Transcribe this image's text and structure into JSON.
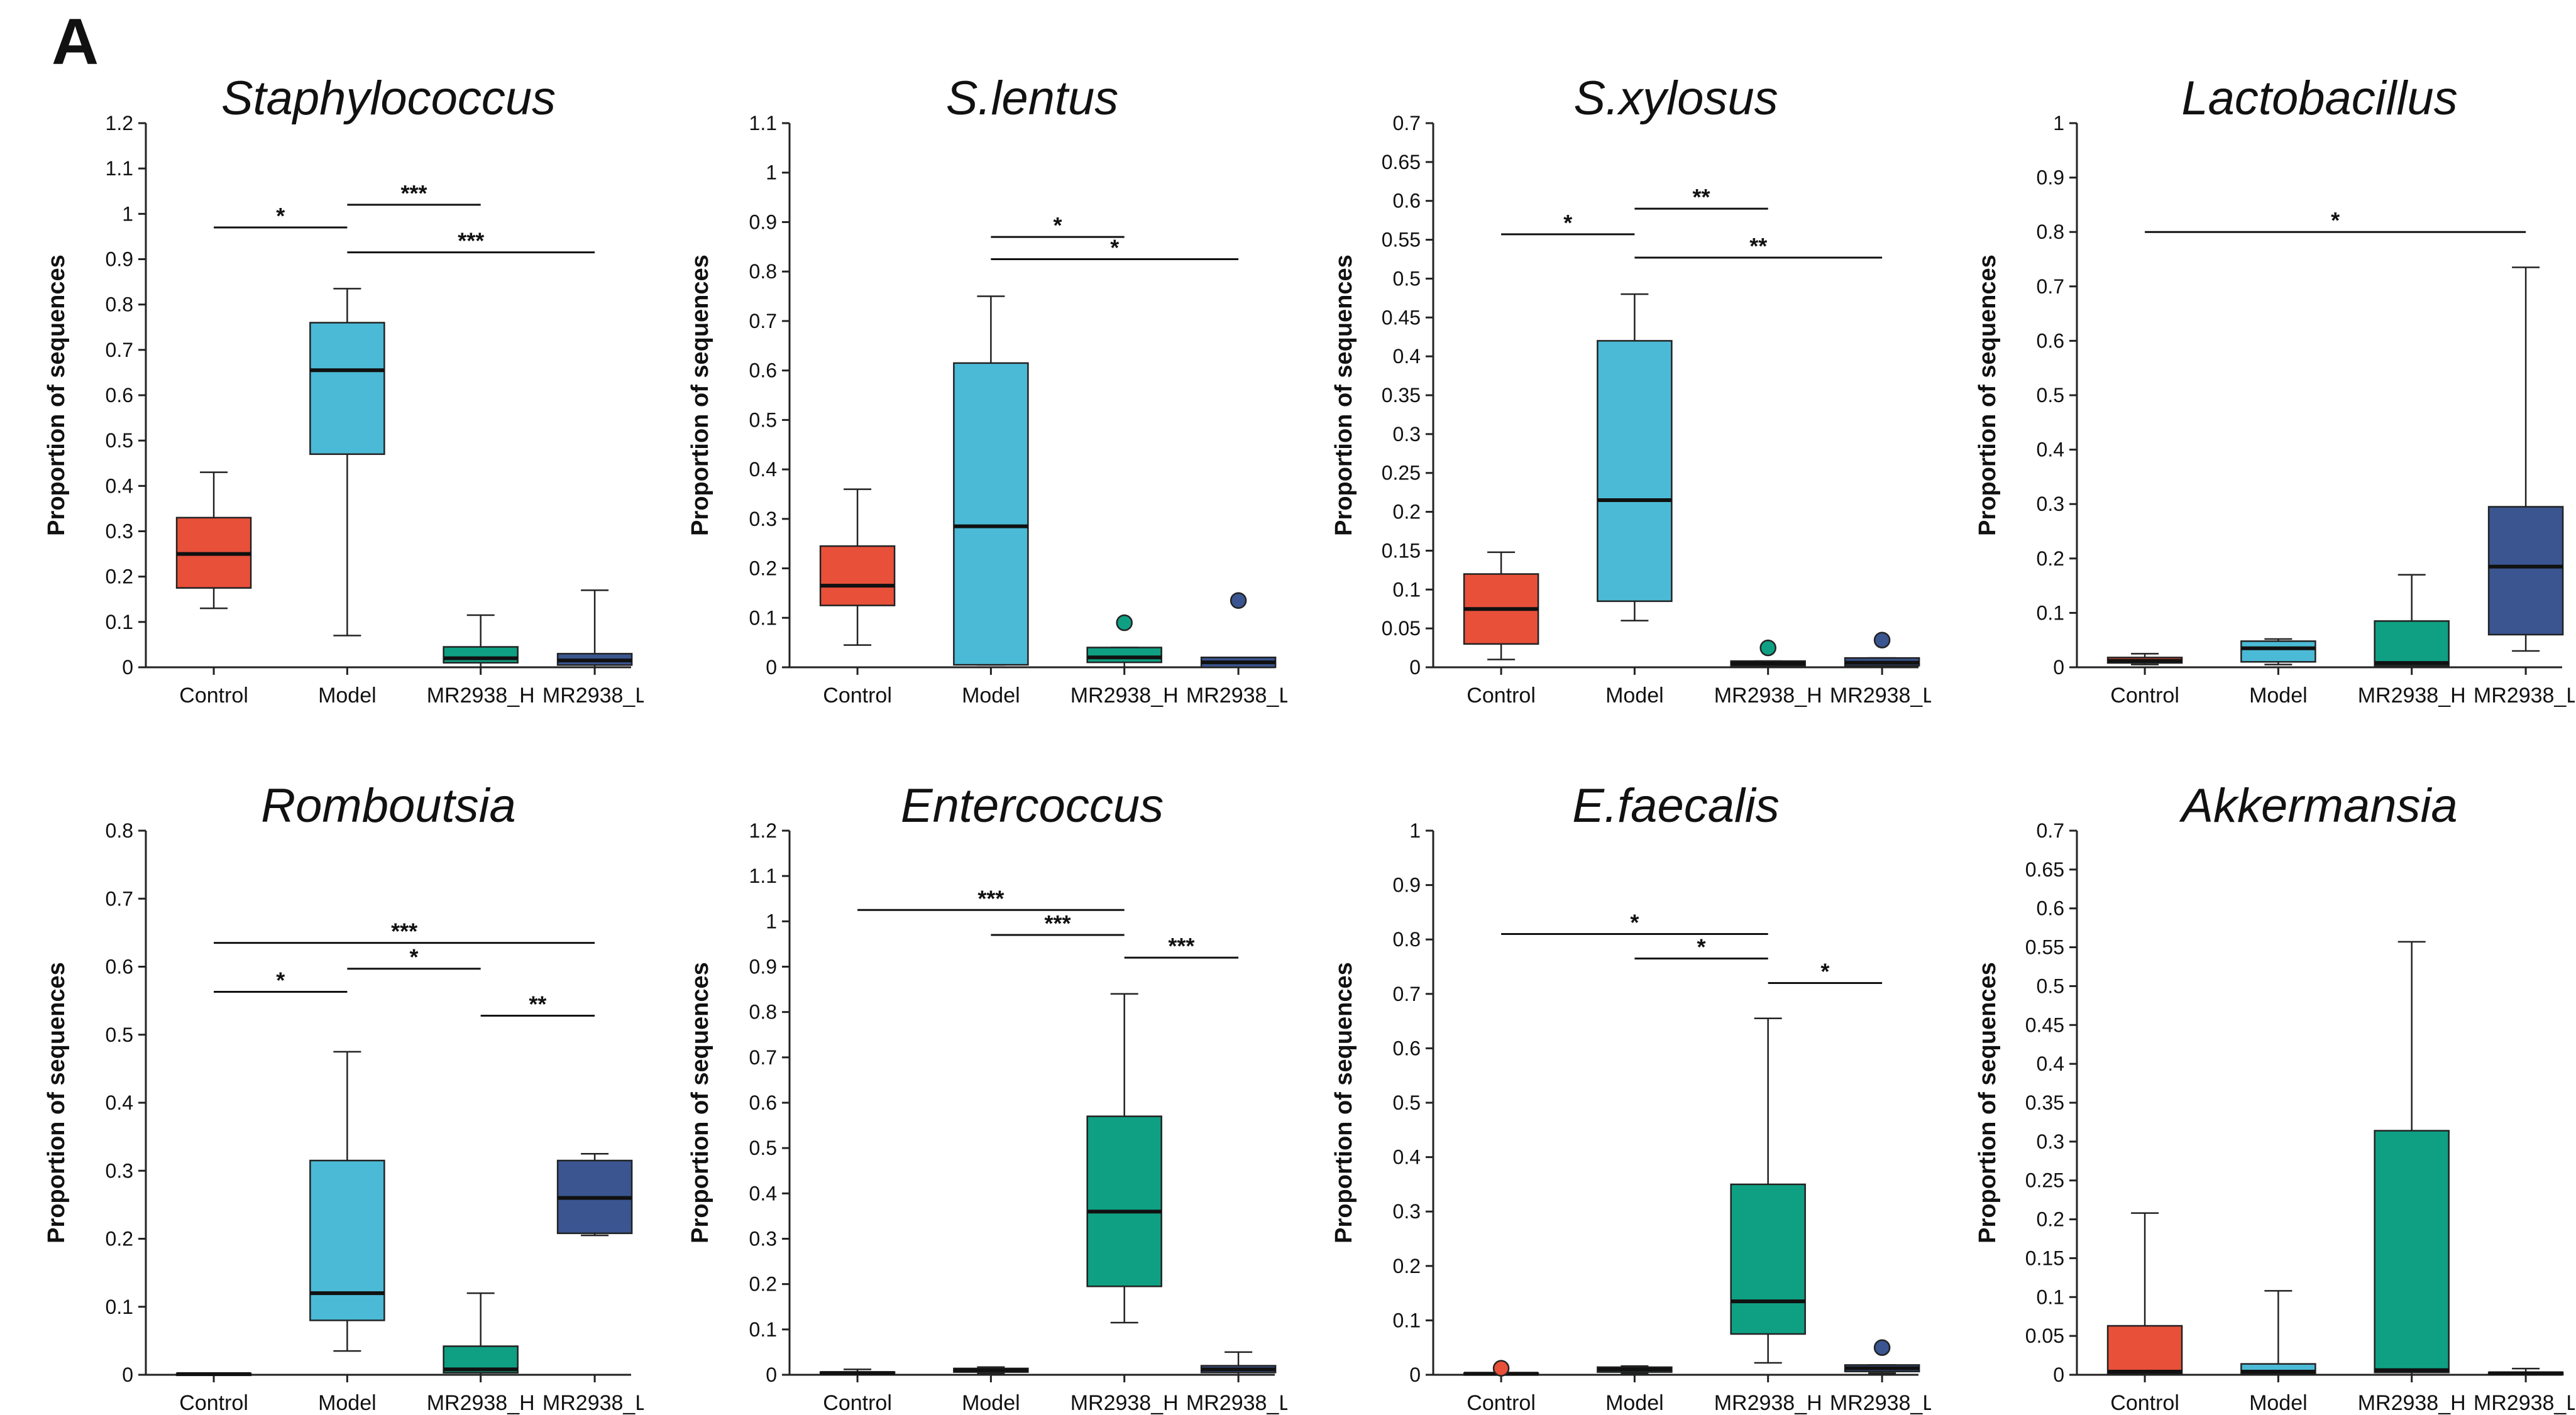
{
  "figure": {
    "panel_label": "A",
    "colors": {
      "Control": "#E8503A",
      "Model": "#4BBAD6",
      "MR2938_H": "#0FA083",
      "MR2938_L": "#3A5590"
    }
  },
  "chart_data": [
    {
      "type": "box",
      "title": "Staphylococcus",
      "ylabel": "Proportion of sequences",
      "ylim": [
        0,
        1.2
      ],
      "yticks": [
        "0",
        "0.1",
        "0.2",
        "0.3",
        "0.4",
        "0.5",
        "0.6",
        "0.7",
        "0.8",
        "0.9",
        "1",
        "1.1",
        "1.2"
      ],
      "categories": [
        "Control",
        "Model",
        "MR2938_H",
        "MR2938_L"
      ],
      "boxes": [
        {
          "min": 0.13,
          "q1": 0.175,
          "median": 0.25,
          "q3": 0.33,
          "max": 0.43,
          "outliers": []
        },
        {
          "min": 0.07,
          "q1": 0.47,
          "median": 0.655,
          "q3": 0.76,
          "max": 0.835,
          "outliers": []
        },
        {
          "min": 0.0,
          "q1": 0.01,
          "median": 0.02,
          "q3": 0.045,
          "max": 0.115,
          "outliers": []
        },
        {
          "min": 0.0,
          "q1": 0.005,
          "median": 0.015,
          "q3": 0.03,
          "max": 0.17,
          "outliers": []
        }
      ],
      "significance": [
        {
          "from": 0,
          "to": 1,
          "y": 0.97,
          "label": "*"
        },
        {
          "from": 1,
          "to": 2,
          "y": 1.02,
          "label": "***"
        },
        {
          "from": 1,
          "to": 3,
          "y": 0.915,
          "label": "***"
        }
      ]
    },
    {
      "type": "box",
      "title": "S.lentus",
      "ylabel": "Proportion of sequences",
      "ylim": [
        0,
        1.1
      ],
      "yticks": [
        "0",
        "0.1",
        "0.2",
        "0.3",
        "0.4",
        "0.5",
        "0.6",
        "0.7",
        "0.8",
        "0.9",
        "1",
        "1.1"
      ],
      "categories": [
        "Control",
        "Model",
        "MR2938_H",
        "MR2938_L"
      ],
      "boxes": [
        {
          "min": 0.045,
          "q1": 0.125,
          "median": 0.165,
          "q3": 0.245,
          "max": 0.36,
          "outliers": []
        },
        {
          "min": 0.005,
          "q1": 0.005,
          "median": 0.285,
          "q3": 0.615,
          "max": 0.75,
          "outliers": []
        },
        {
          "min": 0.0,
          "q1": 0.01,
          "median": 0.02,
          "q3": 0.04,
          "max": 0.04,
          "outliers": [
            0.09
          ]
        },
        {
          "min": 0.0,
          "q1": 0.0,
          "median": 0.01,
          "q3": 0.02,
          "max": 0.02,
          "outliers": [
            0.135
          ]
        }
      ],
      "significance": [
        {
          "from": 1,
          "to": 2,
          "y": 0.87,
          "label": "*"
        },
        {
          "from": 1,
          "to": 3,
          "y": 0.825,
          "label": "*"
        }
      ]
    },
    {
      "type": "box",
      "title": "S.xylosus",
      "ylabel": "Proportion of sequences",
      "ylim": [
        0,
        0.7
      ],
      "yticks": [
        "0",
        "0.05",
        "0.1",
        "0.15",
        "0.2",
        "0.25",
        "0.3",
        "0.35",
        "0.4",
        "0.45",
        "0.5",
        "0.55",
        "0.6",
        "0.65",
        "0.7"
      ],
      "categories": [
        "Control",
        "Model",
        "MR2938_H",
        "MR2938_L"
      ],
      "boxes": [
        {
          "min": 0.01,
          "q1": 0.03,
          "median": 0.075,
          "q3": 0.12,
          "max": 0.148,
          "outliers": []
        },
        {
          "min": 0.06,
          "q1": 0.085,
          "median": 0.215,
          "q3": 0.42,
          "max": 0.48,
          "outliers": []
        },
        {
          "min": 0.0,
          "q1": 0.002,
          "median": 0.005,
          "q3": 0.008,
          "max": 0.008,
          "outliers": [
            0.025
          ]
        },
        {
          "min": 0.0,
          "q1": 0.002,
          "median": 0.006,
          "q3": 0.012,
          "max": 0.012,
          "outliers": [
            0.035
          ]
        }
      ],
      "significance": [
        {
          "from": 0,
          "to": 1,
          "y": 0.557,
          "label": "*"
        },
        {
          "from": 1,
          "to": 2,
          "y": 0.59,
          "label": "**"
        },
        {
          "from": 1,
          "to": 3,
          "y": 0.527,
          "label": "**"
        }
      ]
    },
    {
      "type": "box",
      "title": "Lactobacillus",
      "ylabel": "Proportion of sequences",
      "ylim": [
        0,
        1
      ],
      "yticks": [
        "0",
        "0.1",
        "0.2",
        "0.3",
        "0.4",
        "0.5",
        "0.6",
        "0.7",
        "0.8",
        "0.9",
        "1"
      ],
      "categories": [
        "Control",
        "Model",
        "MR2938_H",
        "MR2938_L"
      ],
      "boxes": [
        {
          "min": 0.005,
          "q1": 0.008,
          "median": 0.012,
          "q3": 0.018,
          "max": 0.025,
          "outliers": []
        },
        {
          "min": 0.005,
          "q1": 0.01,
          "median": 0.035,
          "q3": 0.048,
          "max": 0.052,
          "outliers": []
        },
        {
          "min": 0.0,
          "q1": 0.003,
          "median": 0.008,
          "q3": 0.085,
          "max": 0.17,
          "outliers": []
        },
        {
          "min": 0.03,
          "q1": 0.06,
          "median": 0.185,
          "q3": 0.295,
          "max": 0.735,
          "outliers": []
        }
      ],
      "significance": [
        {
          "from": 0,
          "to": 3,
          "y": 0.8,
          "label": "*"
        }
      ]
    },
    {
      "type": "box",
      "title": "Romboutsia",
      "ylabel": "Proportion of sequences",
      "ylim": [
        0,
        0.8
      ],
      "yticks": [
        "0",
        "0.1",
        "0.2",
        "0.3",
        "0.4",
        "0.5",
        "0.6",
        "0.7",
        "0.8"
      ],
      "categories": [
        "Control",
        "Model",
        "MR2938_H",
        "MR2938_L"
      ],
      "boxes": [
        {
          "min": 0.0,
          "q1": 0.0,
          "median": 0.001,
          "q3": 0.002,
          "max": 0.002,
          "outliers": []
        },
        {
          "min": 0.035,
          "q1": 0.08,
          "median": 0.12,
          "q3": 0.315,
          "max": 0.475,
          "outliers": []
        },
        {
          "min": 0.0,
          "q1": 0.003,
          "median": 0.008,
          "q3": 0.042,
          "max": 0.12,
          "outliers": []
        },
        {
          "min": 0.205,
          "q1": 0.208,
          "median": 0.26,
          "q3": 0.315,
          "max": 0.325,
          "outliers": []
        }
      ],
      "significance": [
        {
          "from": 0,
          "to": 3,
          "y": 0.635,
          "label": "***"
        },
        {
          "from": 0,
          "to": 1,
          "y": 0.563,
          "label": "*"
        },
        {
          "from": 1,
          "to": 2,
          "y": 0.597,
          "label": "*"
        },
        {
          "from": 2,
          "to": 3,
          "y": 0.528,
          "label": "**"
        }
      ]
    },
    {
      "type": "box",
      "title": "Entercoccus",
      "ylabel": "Proportion of sequences",
      "ylim": [
        0,
        1.2
      ],
      "yticks": [
        "0",
        "0.1",
        "0.2",
        "0.3",
        "0.4",
        "0.5",
        "0.6",
        "0.7",
        "0.8",
        "0.9",
        "1",
        "1.1",
        "1.2"
      ],
      "categories": [
        "Control",
        "Model",
        "MR2938_H",
        "MR2938_L"
      ],
      "boxes": [
        {
          "min": 0.0,
          "q1": 0.002,
          "median": 0.004,
          "q3": 0.006,
          "max": 0.012,
          "outliers": []
        },
        {
          "min": 0.003,
          "q1": 0.006,
          "median": 0.01,
          "q3": 0.014,
          "max": 0.017,
          "outliers": []
        },
        {
          "min": 0.115,
          "q1": 0.195,
          "median": 0.36,
          "q3": 0.57,
          "max": 0.84,
          "outliers": []
        },
        {
          "min": 0.0,
          "q1": 0.005,
          "median": 0.012,
          "q3": 0.02,
          "max": 0.05,
          "outliers": []
        }
      ],
      "significance": [
        {
          "from": 0,
          "to": 2,
          "y": 1.025,
          "label": "***"
        },
        {
          "from": 1,
          "to": 2,
          "y": 0.97,
          "label": "***"
        },
        {
          "from": 2,
          "to": 3,
          "y": 0.92,
          "label": "***"
        }
      ]
    },
    {
      "type": "box",
      "title": "E.faecalis",
      "ylabel": "Proportion of sequences",
      "ylim": [
        0,
        1
      ],
      "yticks": [
        "0",
        "0.1",
        "0.2",
        "0.3",
        "0.4",
        "0.5",
        "0.6",
        "0.7",
        "0.8",
        "0.9",
        "1"
      ],
      "categories": [
        "Control",
        "Model",
        "MR2938_H",
        "MR2938_L"
      ],
      "boxes": [
        {
          "min": 0.0,
          "q1": 0.001,
          "median": 0.002,
          "q3": 0.003,
          "max": 0.003,
          "outliers": [
            0.012
          ]
        },
        {
          "min": 0.003,
          "q1": 0.005,
          "median": 0.01,
          "q3": 0.014,
          "max": 0.016,
          "outliers": []
        },
        {
          "min": 0.022,
          "q1": 0.075,
          "median": 0.135,
          "q3": 0.35,
          "max": 0.655,
          "outliers": []
        },
        {
          "min": 0.003,
          "q1": 0.006,
          "median": 0.012,
          "q3": 0.018,
          "max": 0.018,
          "outliers": [
            0.05
          ]
        }
      ],
      "significance": [
        {
          "from": 0,
          "to": 2,
          "y": 0.81,
          "label": "*"
        },
        {
          "from": 1,
          "to": 2,
          "y": 0.765,
          "label": "*"
        },
        {
          "from": 2,
          "to": 3,
          "y": 0.72,
          "label": "*"
        }
      ]
    },
    {
      "type": "box",
      "title": "Akkermansia",
      "ylabel": "Proportion of sequences",
      "ylim": [
        0,
        0.7
      ],
      "yticks": [
        "0",
        "0.05",
        "0.1",
        "0.15",
        "0.2",
        "0.25",
        "0.3",
        "0.35",
        "0.4",
        "0.45",
        "0.5",
        "0.55",
        "0.6",
        "0.65",
        "0.7"
      ],
      "categories": [
        "Control",
        "Model",
        "MR2938_H",
        "MR2938_L"
      ],
      "boxes": [
        {
          "min": 0.0,
          "q1": 0.001,
          "median": 0.004,
          "q3": 0.063,
          "max": 0.208,
          "outliers": []
        },
        {
          "min": 0.0,
          "q1": 0.002,
          "median": 0.004,
          "q3": 0.014,
          "max": 0.108,
          "outliers": []
        },
        {
          "min": 0.0,
          "q1": 0.003,
          "median": 0.006,
          "q3": 0.314,
          "max": 0.557,
          "outliers": []
        },
        {
          "min": 0.0,
          "q1": 0.0,
          "median": 0.002,
          "q3": 0.003,
          "max": 0.008,
          "outliers": []
        }
      ],
      "significance": []
    }
  ]
}
